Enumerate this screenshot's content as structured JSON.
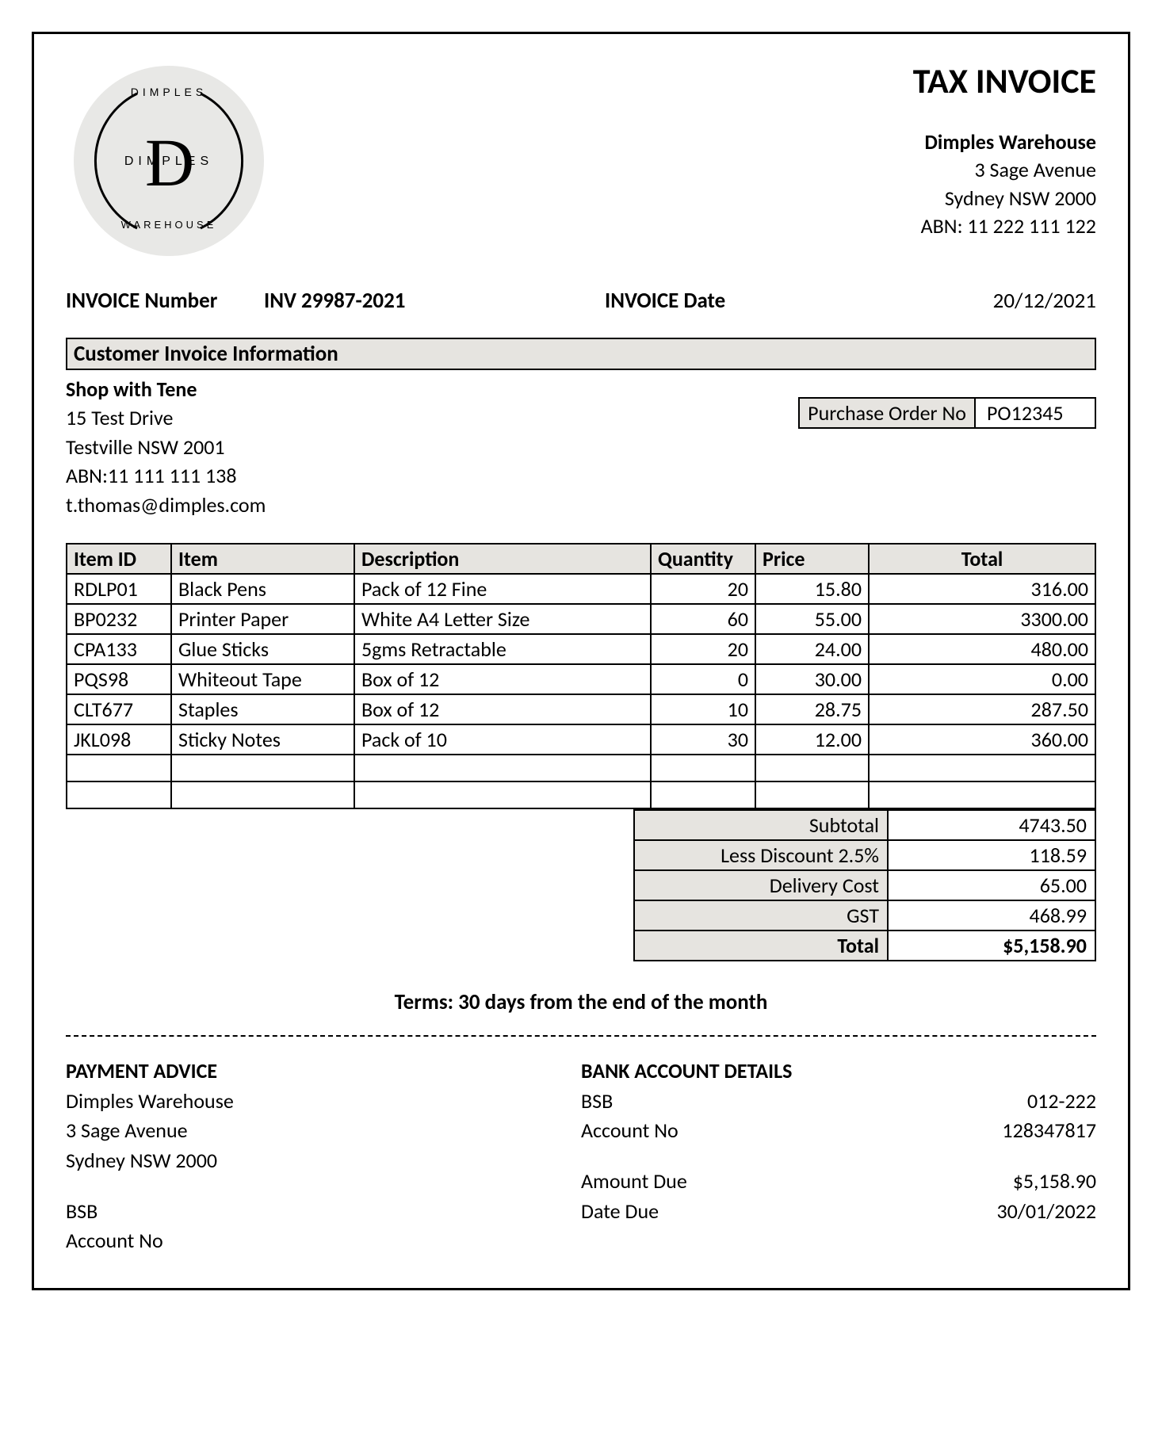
{
  "document": {
    "title": "TAX INVOICE",
    "terms": "Terms: 30 days from the end of the month"
  },
  "logo": {
    "top": "DIMPLES",
    "mid": "DIMPLES",
    "bottom": "WAREHOUSE",
    "letter": "D",
    "circle_bg": "#e8e8e6"
  },
  "company": {
    "name": "Dimples Warehouse",
    "address1": "3 Sage Avenue",
    "address2": "Sydney NSW 2000",
    "abn": "ABN: 11 222 111 122"
  },
  "invoice": {
    "number_label": "INVOICE Number",
    "number": "INV 29987-2021",
    "date_label": "INVOICE Date",
    "date": "20/12/2021"
  },
  "customer_section": {
    "heading": "Customer  Invoice Information",
    "name": "Shop with Tene",
    "address1": "15 Test Drive",
    "address2": "Testville NSW 2001",
    "abn": "ABN:11 111 111 138",
    "email": "t.thomas@dimples.com",
    "po_label": "Purchase Order No",
    "po_number": "PO12345"
  },
  "items_table": {
    "columns": [
      "Item ID",
      "Item",
      "Description",
      "Quantity",
      "Price",
      "Total"
    ],
    "rows": [
      {
        "id": "RDLP01",
        "item": "Black Pens",
        "desc": "Pack of 12 Fine",
        "qty": "20",
        "price": "15.80",
        "total": "316.00"
      },
      {
        "id": "BP0232",
        "item": "Printer Paper",
        "desc": "White A4 Letter Size",
        "qty": "60",
        "price": "55.00",
        "total": "3300.00"
      },
      {
        "id": "CPA133",
        "item": "Glue Sticks",
        "desc": "5gms Retractable",
        "qty": "20",
        "price": "24.00",
        "total": "480.00"
      },
      {
        "id": "PQS98",
        "item": "Whiteout Tape",
        "desc": "Box of 12",
        "qty": "0",
        "price": "30.00",
        "total": "0.00"
      },
      {
        "id": "CLT677",
        "item": "Staples",
        "desc": "Box of 12",
        "qty": "10",
        "price": "28.75",
        "total": "287.50"
      },
      {
        "id": "JKL098",
        "item": "Sticky Notes",
        "desc": "Pack of 10",
        "qty": "30",
        "price": "12.00",
        "total": "360.00"
      }
    ],
    "blank_rows": 2
  },
  "totals": {
    "rows": [
      {
        "label": "Subtotal",
        "value": "4743.50"
      },
      {
        "label": "Less Discount 2.5%",
        "value": "118.59"
      },
      {
        "label": "Delivery Cost",
        "value": "65.00"
      },
      {
        "label": "GST",
        "value": "468.99"
      }
    ],
    "grand_label": "Total",
    "grand_value": "$5,158.90"
  },
  "payment_advice": {
    "heading": "PAYMENT ADVICE",
    "name": "Dimples Warehouse",
    "address1": "3 Sage Avenue",
    "address2": "Sydney NSW 2000",
    "bsb_label": "BSB",
    "acct_label": "Account No"
  },
  "bank_details": {
    "heading": "BANK ACCOUNT DETAILS",
    "bsb_label": "BSB",
    "bsb": "012-222",
    "acct_label": "Account No",
    "acct": "128347817",
    "amount_due_label": "Amount Due",
    "amount_due": "$5,158.90",
    "date_due_label": "Date Due",
    "date_due": "30/01/2022"
  },
  "style": {
    "page_border_color": "#000000",
    "header_bg": "#e6e4e0",
    "font_family": "Calibri",
    "body_fontsize_pt": 20,
    "title_fontsize_pt": 33,
    "text_color": "#000000",
    "background_color": "#ffffff"
  }
}
